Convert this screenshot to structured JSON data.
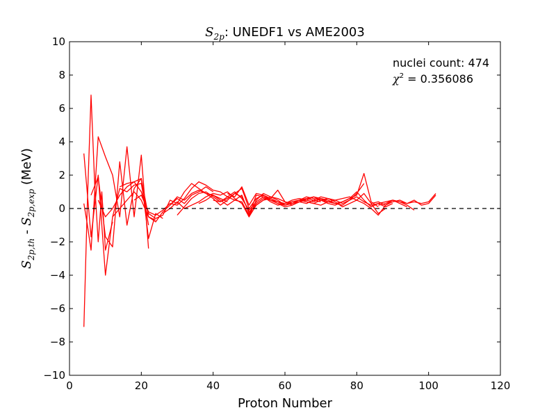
{
  "chart_data": {
    "type": "line",
    "title": {
      "symbol": "S",
      "symbol_sub": "2p",
      "text": ":  UNEDF1 vs AME2003"
    },
    "xlabel": "Proton Number",
    "ylabel": {
      "term1": "S",
      "term1_sub": "2p,th",
      "separator": " - ",
      "term2": "S",
      "term2_sub": "2p,exp",
      "unit": " (MeV)"
    },
    "xlim": [
      0,
      120
    ],
    "ylim": [
      -10,
      10
    ],
    "x_ticks": [
      0,
      20,
      40,
      60,
      80,
      100,
      120
    ],
    "y_ticks": [
      -10,
      -8,
      -6,
      -4,
      -2,
      0,
      2,
      4,
      6,
      8,
      10
    ],
    "x_tick_labels": [
      "0",
      "20",
      "40",
      "60",
      "80",
      "100",
      "120"
    ],
    "y_tick_labels": [
      "−10",
      "−8",
      "−6",
      "−4",
      "−2",
      "0",
      "2",
      "4",
      "6",
      "8",
      "10"
    ],
    "grid": false,
    "reference_line": {
      "y": 0,
      "style": "dashed",
      "color": "#000000"
    },
    "series_color": "#ff0000",
    "annotations": {
      "count_label": "nuclei count: 474",
      "chi_symbol": "χ",
      "chi_sup": "2",
      "chi_value": " = 0.356086"
    },
    "series": [
      {
        "x": [
          4,
          6,
          8,
          10,
          12,
          14,
          16,
          18,
          20,
          22
        ],
        "y": [
          3.3,
          -1.7,
          2.0,
          -4.0,
          -0.5,
          1.2,
          1.0,
          1.4,
          1.5,
          -1.0
        ]
      },
      {
        "x": [
          4,
          5,
          6,
          7,
          8,
          9,
          10,
          12
        ],
        "y": [
          -7.1,
          0.5,
          6.8,
          1.5,
          -2.0,
          1.0,
          -2.5,
          -0.8
        ]
      },
      {
        "x": [
          4,
          5,
          6,
          8,
          10,
          12,
          14,
          16,
          18,
          20,
          22
        ],
        "y": [
          0.3,
          -1.0,
          -2.5,
          4.3,
          3.1,
          2.0,
          -0.5,
          3.7,
          -0.5,
          3.2,
          -2.4
        ]
      },
      {
        "x": [
          6,
          8,
          10,
          12,
          14,
          16,
          18,
          20,
          22,
          24
        ],
        "y": [
          0.8,
          1.9,
          -1.7,
          -2.3,
          2.8,
          -1.0,
          1.2,
          1.8,
          -0.5,
          -0.7
        ]
      },
      {
        "x": [
          8,
          10,
          12,
          14,
          16,
          18,
          20,
          22,
          24,
          26
        ],
        "y": [
          0.5,
          -0.5,
          0.0,
          0.8,
          1.3,
          1.6,
          1.8,
          -1.8,
          -0.3,
          -0.6
        ]
      },
      {
        "x": [
          12,
          14,
          16,
          18,
          20,
          22,
          24,
          26,
          28,
          30,
          32,
          34,
          36,
          38,
          40
        ],
        "y": [
          -0.5,
          0.0,
          0.5,
          1.0,
          0.5,
          -0.5,
          -0.8,
          -0.2,
          0.2,
          0.6,
          0.3,
          0.8,
          1.0,
          1.3,
          1.0
        ]
      },
      {
        "x": [
          14,
          16,
          18,
          20,
          22,
          24,
          26,
          28,
          30,
          32,
          34,
          36,
          38,
          40,
          42,
          44
        ],
        "y": [
          1.3,
          1.5,
          1.6,
          1.0,
          -0.3,
          -0.6,
          -0.4,
          0.5,
          0.3,
          1.0,
          1.5,
          1.2,
          0.9,
          0.8,
          0.6,
          0.4
        ]
      },
      {
        "x": [
          18,
          20,
          22,
          24,
          26,
          28,
          30,
          32,
          34,
          36,
          38,
          40,
          42,
          44,
          46,
          48,
          50,
          52,
          54,
          56,
          58,
          60,
          62,
          64,
          66,
          68,
          70
        ],
        "y": [
          0.5,
          0.8,
          -0.2,
          -0.4,
          -0.1,
          0.3,
          0.2,
          0.6,
          1.2,
          1.6,
          1.4,
          1.1,
          1.0,
          0.7,
          0.5,
          0.4,
          -0.4,
          0.8,
          0.7,
          0.5,
          0.4,
          0.3,
          0.4,
          0.5,
          0.6,
          0.5,
          0.4
        ]
      },
      {
        "x": [
          26,
          28,
          30,
          32,
          34,
          36,
          38,
          40,
          42,
          44,
          46,
          48,
          50,
          52,
          54,
          56,
          58,
          60,
          62,
          64,
          66,
          68,
          70,
          72,
          74,
          76
        ],
        "y": [
          -0.3,
          0.0,
          0.4,
          0.0,
          0.2,
          0.4,
          0.7,
          0.9,
          0.8,
          1.0,
          0.6,
          0.3,
          -0.5,
          0.5,
          0.9,
          0.7,
          0.5,
          0.2,
          0.3,
          0.5,
          0.7,
          0.6,
          0.5,
          0.4,
          0.3,
          0.2
        ]
      },
      {
        "x": [
          28,
          30,
          32,
          34,
          36,
          38,
          40,
          42,
          44,
          46,
          48,
          50,
          52,
          54,
          56,
          58,
          60,
          62,
          64,
          66,
          68,
          70,
          72,
          74,
          76,
          78,
          80,
          82
        ],
        "y": [
          0.2,
          0.7,
          0.5,
          0.9,
          1.1,
          0.9,
          0.6,
          0.2,
          0.5,
          0.9,
          1.2,
          0.0,
          0.6,
          0.8,
          0.5,
          0.3,
          0.1,
          0.2,
          0.4,
          0.3,
          0.5,
          0.7,
          0.6,
          0.5,
          0.3,
          0.5,
          0.9,
          1.5
        ]
      },
      {
        "x": [
          30,
          32,
          34,
          36,
          38,
          40,
          42,
          44,
          46,
          48,
          50,
          52,
          54,
          56,
          58,
          60,
          62,
          64,
          66,
          68,
          70,
          72,
          74,
          76,
          78,
          80,
          82,
          84,
          86
        ],
        "y": [
          -0.4,
          0.1,
          0.6,
          0.9,
          1.0,
          0.7,
          0.4,
          0.6,
          0.9,
          0.7,
          -0.2,
          0.2,
          0.5,
          0.6,
          0.4,
          0.2,
          0.3,
          0.4,
          0.6,
          0.7,
          0.5,
          0.3,
          0.2,
          0.4,
          0.6,
          0.8,
          2.1,
          0.4,
          0.1
        ]
      },
      {
        "x": [
          36,
          38,
          40,
          42,
          44,
          46,
          48,
          50,
          52,
          54,
          56,
          58,
          60,
          62,
          64,
          66,
          68,
          70,
          72,
          74,
          76,
          78,
          80,
          82,
          84,
          86,
          88
        ],
        "y": [
          0.3,
          0.5,
          0.8,
          0.5,
          0.2,
          0.5,
          0.8,
          -0.3,
          0.3,
          0.6,
          0.5,
          0.3,
          0.2,
          0.4,
          0.5,
          0.4,
          0.3,
          0.5,
          0.6,
          0.4,
          0.1,
          0.3,
          0.5,
          0.9,
          0.3,
          -0.3,
          0.0
        ]
      },
      {
        "x": [
          40,
          42,
          44,
          46,
          48,
          50,
          52,
          54,
          56,
          58,
          60,
          62,
          64,
          66,
          68,
          70,
          72,
          74,
          76,
          78,
          80,
          82,
          84,
          86,
          88,
          90
        ],
        "y": [
          0.5,
          0.4,
          0.7,
          1.0,
          0.6,
          -0.1,
          0.4,
          0.7,
          0.4,
          0.2,
          0.3,
          0.5,
          0.6,
          0.5,
          0.4,
          0.6,
          0.5,
          0.3,
          0.2,
          0.5,
          0.7,
          0.4,
          0.2,
          0.3,
          0.1,
          0.3
        ]
      },
      {
        "x": [
          44,
          46,
          48,
          50,
          52,
          54,
          56,
          58,
          60,
          62,
          64,
          66,
          68,
          70,
          72,
          74,
          76,
          78,
          80,
          82,
          84,
          86,
          88,
          90,
          92,
          94
        ],
        "y": [
          0.9,
          0.7,
          1.3,
          0.2,
          0.9,
          0.8,
          0.6,
          1.1,
          0.4,
          0.2,
          0.4,
          0.5,
          0.7,
          0.6,
          0.4,
          0.3,
          0.4,
          0.6,
          1.0,
          0.5,
          0.1,
          0.3,
          0.4,
          0.5,
          0.3,
          0.1
        ]
      },
      {
        "x": [
          48,
          50,
          52,
          54,
          56,
          58,
          60,
          62,
          64,
          66,
          68,
          70,
          72,
          74,
          76,
          78,
          80,
          82,
          84,
          86,
          88,
          90,
          92,
          94,
          96
        ],
        "y": [
          0.4,
          -0.5,
          0.2,
          0.5,
          0.7,
          0.6,
          0.4,
          0.3,
          0.5,
          0.4,
          0.3,
          0.2,
          0.4,
          0.5,
          0.6,
          0.7,
          0.5,
          0.3,
          0.0,
          -0.4,
          0.2,
          0.5,
          0.4,
          0.2,
          -0.1
        ]
      },
      {
        "x": [
          84,
          86,
          88,
          90,
          92,
          94,
          96,
          98,
          100,
          102
        ],
        "y": [
          0.3,
          0.4,
          0.2,
          0.4,
          0.5,
          0.3,
          0.4,
          0.3,
          0.4,
          0.9
        ]
      },
      {
        "x": [
          86,
          88,
          90,
          92,
          94,
          96,
          98,
          100,
          102
        ],
        "y": [
          0.2,
          0.3,
          0.5,
          0.4,
          0.3,
          0.5,
          0.2,
          0.3,
          0.8
        ]
      }
    ]
  }
}
